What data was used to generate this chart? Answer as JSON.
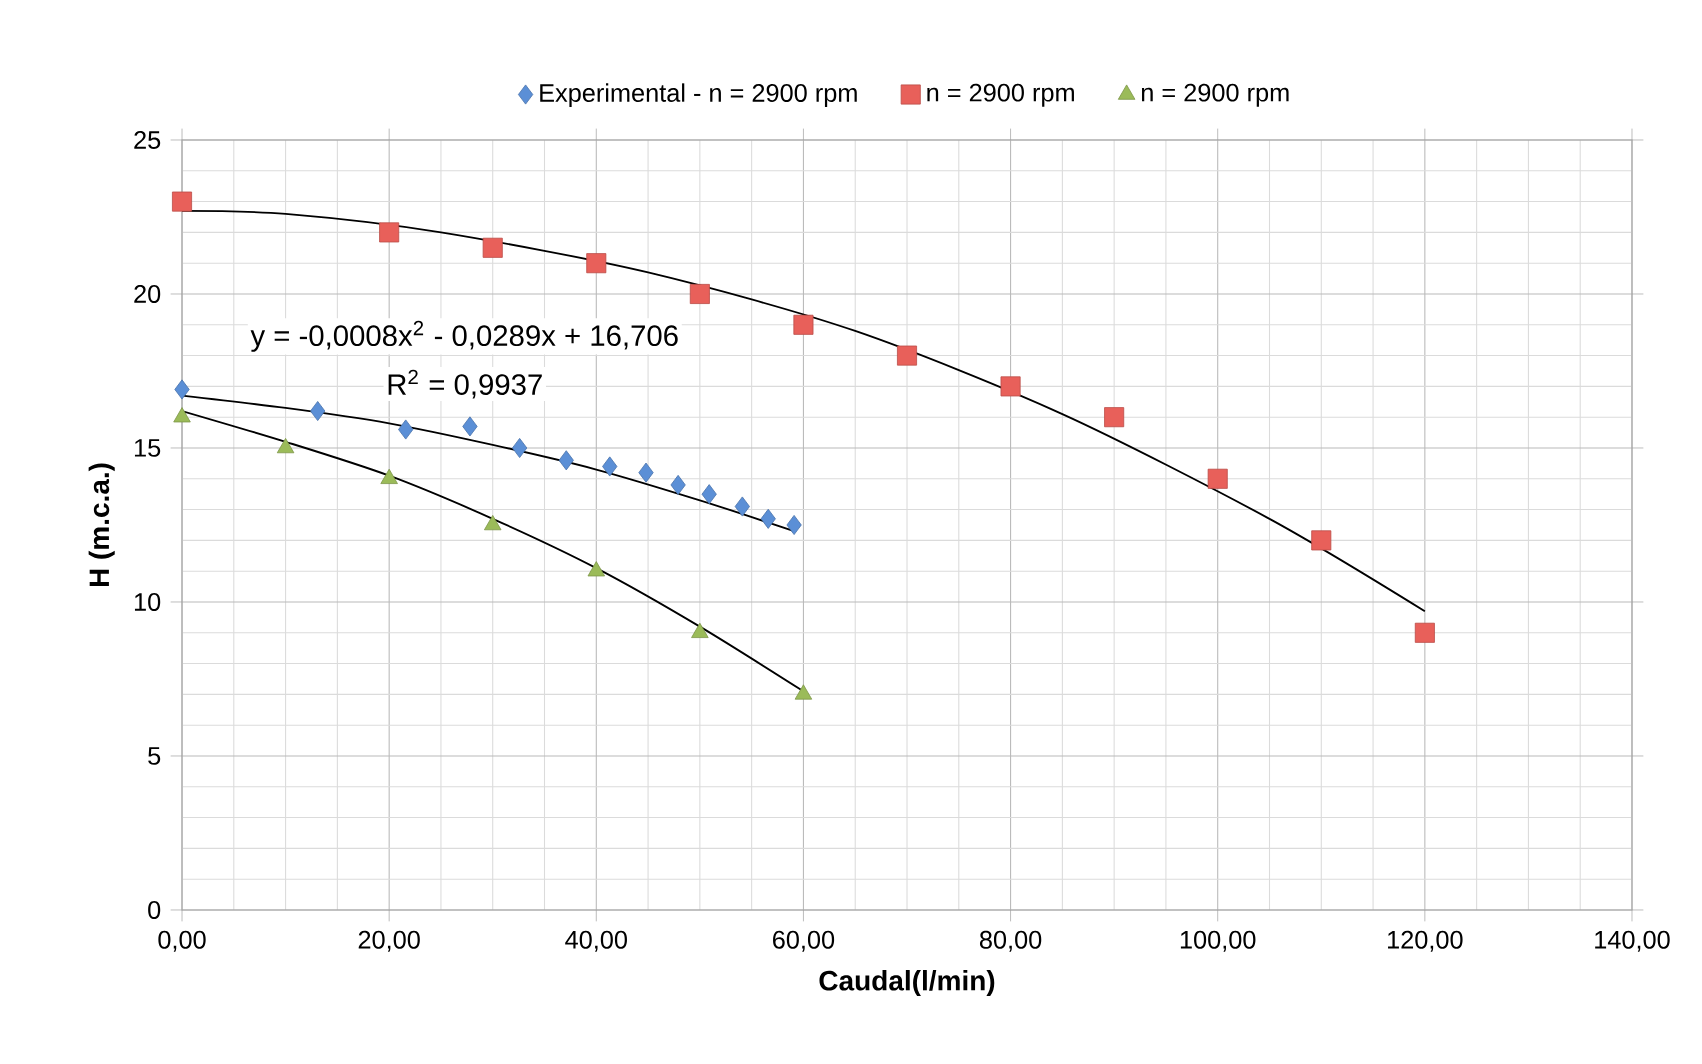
{
  "chart_data": {
    "type": "scatter",
    "xlabel": "Caudal(l/min)",
    "ylabel": "H (m.c.a.)",
    "xlim": [
      0,
      140
    ],
    "ylim": [
      0,
      25
    ],
    "xticks": [
      {
        "value": 0,
        "label": "0,00"
      },
      {
        "value": 20,
        "label": "20,00"
      },
      {
        "value": 40,
        "label": "40,00"
      },
      {
        "value": 60,
        "label": "60,00"
      },
      {
        "value": 80,
        "label": "80,00"
      },
      {
        "value": 100,
        "label": "100,00"
      },
      {
        "value": 120,
        "label": "120,00"
      },
      {
        "value": 140,
        "label": "140,00"
      }
    ],
    "yticks": [
      0,
      5,
      10,
      15,
      20,
      25
    ],
    "grid": true,
    "legend": "top",
    "annotations": [
      "y = -0,0008x$^{2}$ - 0,0289x + 16,706",
      "R$^{2}$ = 0,9937"
    ],
    "series": [
      {
        "name": "Experimental - n = 2900 rpm",
        "color": "#5b8fd6",
        "marker": "diamond",
        "x": [
          0,
          13.1,
          21.6,
          27.8,
          32.6,
          37.1,
          41.3,
          44.8,
          47.9,
          50.9,
          54.1,
          56.6,
          59.1
        ],
        "values": [
          16.9,
          16.2,
          15.6,
          15.7,
          15.0,
          14.6,
          14.4,
          14.2,
          13.8,
          13.5,
          13.1,
          12.7,
          12.5
        ]
      },
      {
        "name": "n = 2900 rpm",
        "color": "#e8605a",
        "marker": "square",
        "x": [
          0,
          20,
          30,
          40,
          50,
          60,
          70,
          80,
          90,
          100,
          110,
          120
        ],
        "values": [
          23,
          22,
          21.5,
          21,
          20,
          19,
          18,
          17,
          16,
          14,
          12,
          9
        ]
      },
      {
        "name": "n = 2900 rpm",
        "color": "#9bbb59",
        "marker": "triangle",
        "x": [
          0,
          10,
          20,
          30,
          40,
          50,
          60
        ],
        "values": [
          16,
          15,
          14,
          12.5,
          11,
          9,
          7
        ]
      },
      {
        "type": "line",
        "color": "#000000",
        "marker": "none",
        "x": [
          0,
          10,
          20,
          30,
          40,
          50,
          59.1
        ],
        "values": [
          16.7,
          16.3,
          15.8,
          15.1,
          14.3,
          13.3,
          12.3
        ]
      },
      {
        "type": "line",
        "color": "#000000",
        "marker": "none",
        "x": [
          0,
          10,
          25,
          45,
          65,
          85,
          105,
          120
        ],
        "values": [
          22.7,
          22.6,
          22.0,
          20.7,
          18.8,
          16.1,
          12.7,
          9.7
        ]
      },
      {
        "type": "line",
        "color": "#000000",
        "marker": "none",
        "x": [
          0,
          10,
          20,
          30,
          40,
          50,
          60
        ],
        "values": [
          16.2,
          15.2,
          14.1,
          12.7,
          11.1,
          9.2,
          7.1
        ]
      }
    ]
  }
}
